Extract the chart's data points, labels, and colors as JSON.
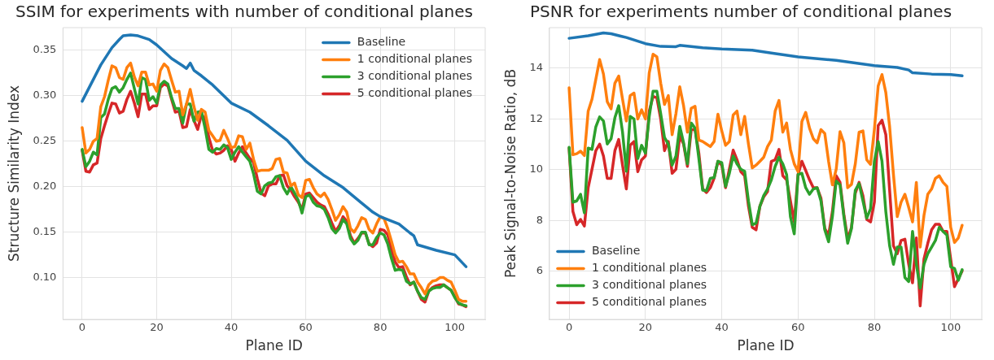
{
  "chart_data": [
    {
      "type": "line",
      "title": "SSIM for experiments with number of conditional planes",
      "xlabel": "Plane ID",
      "ylabel": "Structure Similarity Index",
      "grid": true,
      "legend": "top right",
      "xlim": [
        -5.15,
        108.15
      ],
      "xticks": [
        0,
        20,
        40,
        60,
        80,
        100
      ],
      "ylim": [
        0.054,
        0.375
      ],
      "yticks": [
        {
          "value": 0.1,
          "label": "0.10"
        },
        0.15,
        {
          "value": 0.2,
          "label": "0.20"
        },
        0.25,
        {
          "value": 0.3,
          "label": "0.30"
        },
        0.35
      ],
      "x": [
        0,
        1,
        2,
        3,
        4,
        5,
        6,
        7,
        8,
        9,
        10,
        11,
        12,
        13,
        14,
        15,
        16,
        17,
        18,
        19,
        20,
        21,
        22,
        23,
        24,
        25,
        26,
        27,
        28,
        29,
        30,
        31,
        32,
        33,
        34,
        35,
        36,
        37,
        38,
        39,
        40,
        41,
        42,
        43,
        44,
        45,
        46,
        47,
        48,
        49,
        50,
        51,
        52,
        53,
        54,
        55,
        56,
        57,
        58,
        59,
        60,
        61,
        62,
        63,
        64,
        65,
        66,
        67,
        68,
        69,
        70,
        71,
        72,
        73,
        74,
        75,
        76,
        77,
        78,
        79,
        80,
        81,
        82,
        83,
        84,
        85,
        86,
        87,
        88,
        89,
        90,
        91,
        92,
        93,
        94,
        95,
        96,
        97,
        98,
        99,
        100,
        101,
        102,
        103
      ],
      "series": [
        {
          "name": "Baseline",
          "color": "#1f77b4",
          "x": [
            0,
            5,
            8,
            10,
            11,
            13,
            15,
            18,
            20,
            24,
            27,
            28,
            29,
            30,
            32,
            35,
            40,
            45,
            50,
            55,
            60,
            65,
            70,
            75,
            78,
            80,
            85,
            88,
            89,
            90,
            95,
            100,
            103
          ],
          "values": [
            0.294,
            0.334,
            0.353,
            0.362,
            0.366,
            0.367,
            0.366,
            0.362,
            0.356,
            0.341,
            0.333,
            0.33,
            0.336,
            0.328,
            0.322,
            0.312,
            0.292,
            0.282,
            0.267,
            0.251,
            0.228,
            0.212,
            0.199,
            0.182,
            0.172,
            0.167,
            0.159,
            0.149,
            0.146,
            0.136,
            0.13,
            0.125,
            0.112
          ]
        },
        {
          "name": "1 conditional planes",
          "color": "#ff7f0e",
          "values": [
            0.265,
            0.237,
            0.241,
            0.25,
            0.253,
            0.288,
            0.299,
            0.317,
            0.333,
            0.331,
            0.32,
            0.318,
            0.331,
            0.336,
            0.321,
            0.311,
            0.326,
            0.326,
            0.312,
            0.313,
            0.305,
            0.328,
            0.335,
            0.331,
            0.317,
            0.304,
            0.305,
            0.279,
            0.291,
            0.307,
            0.288,
            0.273,
            0.285,
            0.282,
            0.262,
            0.256,
            0.25,
            0.251,
            0.262,
            0.253,
            0.243,
            0.244,
            0.256,
            0.255,
            0.241,
            0.248,
            0.23,
            0.217,
            0.218,
            0.218,
            0.218,
            0.22,
            0.23,
            0.231,
            0.216,
            0.215,
            0.201,
            0.204,
            0.191,
            0.188,
            0.207,
            0.208,
            0.199,
            0.192,
            0.189,
            0.193,
            0.186,
            0.175,
            0.163,
            0.169,
            0.178,
            0.172,
            0.154,
            0.15,
            0.157,
            0.166,
            0.164,
            0.153,
            0.149,
            0.159,
            0.167,
            0.165,
            0.154,
            0.14,
            0.125,
            0.117,
            0.118,
            0.112,
            0.104,
            0.104,
            0.095,
            0.089,
            0.082,
            0.092,
            0.096,
            0.097,
            0.1,
            0.1,
            0.097,
            0.095,
            0.086,
            0.076,
            0.074,
            0.074
          ]
        },
        {
          "name": "3 conditional planes",
          "color": "#2ca02c",
          "values": [
            0.241,
            0.222,
            0.228,
            0.238,
            0.235,
            0.276,
            0.28,
            0.296,
            0.308,
            0.31,
            0.304,
            0.309,
            0.318,
            0.325,
            0.308,
            0.291,
            0.32,
            0.318,
            0.295,
            0.299,
            0.292,
            0.312,
            0.316,
            0.313,
            0.298,
            0.286,
            0.286,
            0.27,
            0.291,
            0.291,
            0.272,
            0.282,
            0.283,
            0.264,
            0.241,
            0.238,
            0.242,
            0.241,
            0.246,
            0.243,
            0.23,
            0.238,
            0.244,
            0.238,
            0.233,
            0.228,
            0.214,
            0.195,
            0.192,
            0.201,
            0.204,
            0.205,
            0.211,
            0.212,
            0.199,
            0.192,
            0.2,
            0.193,
            0.185,
            0.171,
            0.189,
            0.191,
            0.183,
            0.179,
            0.178,
            0.175,
            0.166,
            0.154,
            0.149,
            0.154,
            0.164,
            0.159,
            0.143,
            0.137,
            0.141,
            0.15,
            0.15,
            0.136,
            0.136,
            0.144,
            0.149,
            0.147,
            0.137,
            0.121,
            0.108,
            0.109,
            0.108,
            0.096,
            0.093,
            0.095,
            0.085,
            0.078,
            0.076,
            0.085,
            0.088,
            0.089,
            0.089,
            0.092,
            0.089,
            0.086,
            0.078,
            0.072,
            0.07,
            0.069
          ]
        },
        {
          "name": "5 conditional planes",
          "color": "#d62728",
          "values": [
            0.24,
            0.217,
            0.216,
            0.224,
            0.226,
            0.253,
            0.267,
            0.28,
            0.292,
            0.291,
            0.281,
            0.283,
            0.296,
            0.305,
            0.292,
            0.277,
            0.302,
            0.302,
            0.285,
            0.289,
            0.289,
            0.309,
            0.313,
            0.311,
            0.296,
            0.282,
            0.283,
            0.265,
            0.266,
            0.285,
            0.273,
            0.263,
            0.279,
            0.275,
            0.254,
            0.24,
            0.236,
            0.237,
            0.24,
            0.245,
            0.241,
            0.228,
            0.237,
            0.244,
            0.237,
            0.231,
            0.227,
            0.209,
            0.193,
            0.19,
            0.201,
            0.203,
            0.203,
            0.212,
            0.213,
            0.201,
            0.196,
            0.189,
            0.183,
            0.175,
            0.192,
            0.193,
            0.188,
            0.183,
            0.18,
            0.178,
            0.17,
            0.16,
            0.151,
            0.157,
            0.167,
            0.162,
            0.146,
            0.138,
            0.143,
            0.149,
            0.149,
            0.137,
            0.134,
            0.138,
            0.153,
            0.152,
            0.147,
            0.131,
            0.117,
            0.111,
            0.112,
            0.101,
            0.092,
            0.095,
            0.085,
            0.076,
            0.073,
            0.085,
            0.089,
            0.091,
            0.092,
            0.092,
            0.089,
            0.086,
            0.079,
            0.071,
            0.07,
            0.068
          ]
        }
      ]
    },
    {
      "type": "line",
      "title": "PSNR for experiments number of conditional planes",
      "xlabel": "Plane ID",
      "ylabel": "Peak Signal-to-Noise Ratio, dB",
      "grid": true,
      "legend": "bottom left",
      "xlim": [
        -5.15,
        108.15
      ],
      "xticks": [
        0,
        20,
        40,
        60,
        80,
        100
      ],
      "ylim": [
        4.1,
        15.6
      ],
      "yticks": [
        6,
        8,
        10,
        12,
        14
      ],
      "x": [
        0,
        1,
        2,
        3,
        4,
        5,
        6,
        7,
        8,
        9,
        10,
        11,
        12,
        13,
        14,
        15,
        16,
        17,
        18,
        19,
        20,
        21,
        22,
        23,
        24,
        25,
        26,
        27,
        28,
        29,
        30,
        31,
        32,
        33,
        34,
        35,
        36,
        37,
        38,
        39,
        40,
        41,
        42,
        43,
        44,
        45,
        46,
        47,
        48,
        49,
        50,
        51,
        52,
        53,
        54,
        55,
        56,
        57,
        58,
        59,
        60,
        61,
        62,
        63,
        64,
        65,
        66,
        67,
        68,
        69,
        70,
        71,
        72,
        73,
        74,
        75,
        76,
        77,
        78,
        79,
        80,
        81,
        82,
        83,
        84,
        85,
        86,
        87,
        88,
        89,
        90,
        91,
        92,
        93,
        94,
        95,
        96,
        97,
        98,
        99,
        100,
        101,
        102,
        103
      ],
      "series": [
        {
          "name": "Baseline",
          "color": "#1f77b4",
          "x": [
            0,
            5,
            9,
            11,
            15,
            20,
            24,
            28,
            29,
            35,
            40,
            48,
            53,
            60,
            70,
            80,
            86,
            89,
            90,
            95,
            100,
            103
          ],
          "values": [
            15.18,
            15.28,
            15.39,
            15.36,
            15.21,
            14.97,
            14.86,
            14.85,
            14.9,
            14.81,
            14.76,
            14.71,
            14.6,
            14.45,
            14.31,
            14.1,
            14.03,
            13.93,
            13.82,
            13.77,
            13.75,
            13.7
          ]
        },
        {
          "name": "1 conditional planes",
          "color": "#ff7f0e",
          "values": [
            13.23,
            10.59,
            10.63,
            10.73,
            10.56,
            12.31,
            12.78,
            13.56,
            14.34,
            13.77,
            12.68,
            12.4,
            13.41,
            13.69,
            12.78,
            11.92,
            12.92,
            13.02,
            12.0,
            12.36,
            12.0,
            13.82,
            14.55,
            14.45,
            13.41,
            12.57,
            12.92,
            11.38,
            12.21,
            13.27,
            12.52,
            11.48,
            12.42,
            12.5,
            11.17,
            11.11,
            11.01,
            10.91,
            11.11,
            12.19,
            11.53,
            10.96,
            11.11,
            12.16,
            12.31,
            11.38,
            12.1,
            11.01,
            10.07,
            10.18,
            10.33,
            10.49,
            10.91,
            11.17,
            12.31,
            12.73,
            11.48,
            11.84,
            10.8,
            10.23,
            9.92,
            11.9,
            12.26,
            11.64,
            11.22,
            11.06,
            11.58,
            11.43,
            10.33,
            9.4,
            10.02,
            11.5,
            11.06,
            9.29,
            9.42,
            10.23,
            11.48,
            11.53,
            10.39,
            10.21,
            11.58,
            13.3,
            13.75,
            13.04,
            11.69,
            9.81,
            8.15,
            8.72,
            9.03,
            8.51,
            7.94,
            9.5,
            6.95,
            8.2,
            9.03,
            9.24,
            9.66,
            9.76,
            9.5,
            9.34,
            7.73,
            7.13,
            7.31,
            7.81
          ]
        },
        {
          "name": "3 conditional planes",
          "color": "#2ca02c",
          "values": [
            10.88,
            8.72,
            8.77,
            9.03,
            8.3,
            10.85,
            10.8,
            11.69,
            12.08,
            11.92,
            11.01,
            11.22,
            12.05,
            12.52,
            11.48,
            9.94,
            12.1,
            12.0,
            10.44,
            10.96,
            10.65,
            12.1,
            13.09,
            13.09,
            12.21,
            11.27,
            11.01,
            10.18,
            10.54,
            11.71,
            11.06,
            10.23,
            11.84,
            11.64,
            10.44,
            9.19,
            9.17,
            9.66,
            9.69,
            10.33,
            10.28,
            9.34,
            9.86,
            10.54,
            10.23,
            10.02,
            9.94,
            8.77,
            7.83,
            7.89,
            8.56,
            8.98,
            9.24,
            9.6,
            10.13,
            10.49,
            10.23,
            9.81,
            8.15,
            7.47,
            9.81,
            9.86,
            9.29,
            9.03,
            9.24,
            9.29,
            8.77,
            7.63,
            7.16,
            8.15,
            9.55,
            9.4,
            8.15,
            7.1,
            7.68,
            9.19,
            9.45,
            8.77,
            8.09,
            8.46,
            10.33,
            11.11,
            10.33,
            8.35,
            7.0,
            6.27,
            6.95,
            6.95,
            5.75,
            5.59,
            7.57,
            6.27,
            5.33,
            6.27,
            6.69,
            6.95,
            7.21,
            7.73,
            7.57,
            7.42,
            6.17,
            6.11,
            5.64,
            6.06
          ]
        },
        {
          "name": "5 conditional planes",
          "color": "#d62728",
          "values": [
            10.85,
            8.35,
            7.83,
            8.04,
            7.78,
            9.29,
            10.02,
            10.75,
            11.01,
            10.54,
            9.66,
            9.66,
            10.75,
            11.19,
            10.18,
            9.24,
            10.96,
            11.11,
            9.92,
            10.39,
            10.54,
            12.31,
            12.89,
            12.83,
            12.0,
            10.75,
            11.11,
            9.86,
            10.02,
            11.32,
            11.01,
            10.13,
            11.56,
            11.6,
            10.65,
            9.24,
            9.1,
            9.29,
            9.66,
            10.33,
            10.18,
            9.29,
            10.02,
            10.77,
            10.39,
            9.92,
            9.76,
            8.56,
            7.73,
            7.63,
            8.56,
            8.93,
            9.14,
            10.33,
            10.39,
            10.8,
            9.76,
            9.6,
            8.77,
            7.94,
            9.81,
            10.33,
            9.97,
            9.6,
            9.29,
            9.29,
            8.88,
            7.68,
            7.42,
            8.35,
            9.76,
            9.5,
            8.25,
            7.26,
            7.73,
            9.08,
            9.5,
            8.98,
            8.04,
            7.94,
            8.72,
            11.74,
            11.95,
            11.38,
            9.19,
            7.0,
            6.69,
            7.21,
            7.26,
            6.27,
            5.54,
            7.31,
            4.63,
            6.48,
            7.1,
            7.63,
            7.85,
            7.85,
            7.57,
            7.57,
            6.48,
            5.39,
            5.7,
            6.01
          ]
        }
      ]
    }
  ]
}
